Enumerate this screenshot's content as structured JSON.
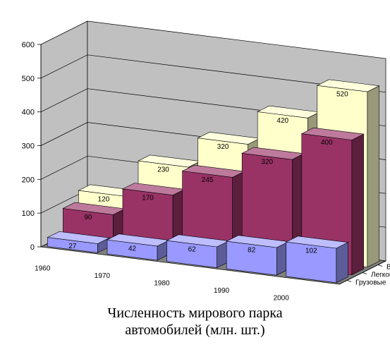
{
  "chart_data": {
    "type": "bar",
    "subtype": "3d-clustered-bar",
    "title": [
      "Численность мирового парка",
      "автомобилей (млн. шт.)"
    ],
    "categories": [
      "1960",
      "1970",
      "1980",
      "1990",
      "2000"
    ],
    "series": [
      {
        "name": "Грузовые",
        "values": [
          27,
          42,
          62,
          82,
          102
        ],
        "color": "#9999ff"
      },
      {
        "name": "Легковые",
        "values": [
          90,
          170,
          245,
          320,
          400
        ],
        "color": "#993366"
      },
      {
        "name": "Всего",
        "values": [
          120,
          230,
          320,
          420,
          520
        ],
        "color": "#ffffcc"
      }
    ],
    "data_labels": {
      "Грузовые": [
        "27",
        "42",
        "62",
        "82",
        "102"
      ],
      "Легковые": [
        "90",
        "170",
        "245",
        "320",
        "400"
      ],
      "Всего": [
        "120",
        "230",
        "320",
        "420",
        "520"
      ]
    },
    "ylim": [
      0,
      600
    ],
    "yticks": [
      "0",
      "100",
      "200",
      "300",
      "400",
      "500",
      "600"
    ],
    "xlabel": "",
    "ylabel": "",
    "walls_color": "#c0c0c0",
    "floor_color": "#808080",
    "grid": true
  }
}
